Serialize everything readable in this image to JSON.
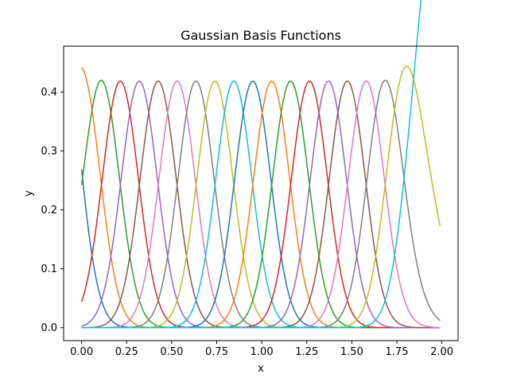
{
  "chart_data": {
    "type": "line",
    "title": "Gaussian Basis Functions",
    "xlabel": "x",
    "ylabel": "y",
    "xlim": [
      -0.1,
      2.09
    ],
    "ylim": [
      -0.022,
      0.478
    ],
    "xticks": [
      0.0,
      0.25,
      0.5,
      0.75,
      1.0,
      1.25,
      1.5,
      1.75,
      2.0
    ],
    "xtick_labels": [
      "0.00",
      "0.25",
      "0.50",
      "0.75",
      "1.00",
      "1.25",
      "1.50",
      "1.75",
      "2.00"
    ],
    "yticks": [
      0.0,
      0.1,
      0.2,
      0.3,
      0.4
    ],
    "ytick_labels": [
      "0.0",
      "0.1",
      "0.2",
      "0.3",
      "0.4"
    ],
    "grid": false,
    "legend": "none",
    "x_range": [
      0.0,
      1.99
    ],
    "basis": {
      "count": 20,
      "centers_start": -0.1,
      "centers_step": 0.105,
      "width": 0.1,
      "normalized": true
    },
    "colors": [
      "#1f77b4",
      "#ff7f0e",
      "#2ca02c",
      "#d62728",
      "#9467bd",
      "#8c564b",
      "#e377c2",
      "#7f7f7f",
      "#bcbd22",
      "#17becf"
    ]
  }
}
